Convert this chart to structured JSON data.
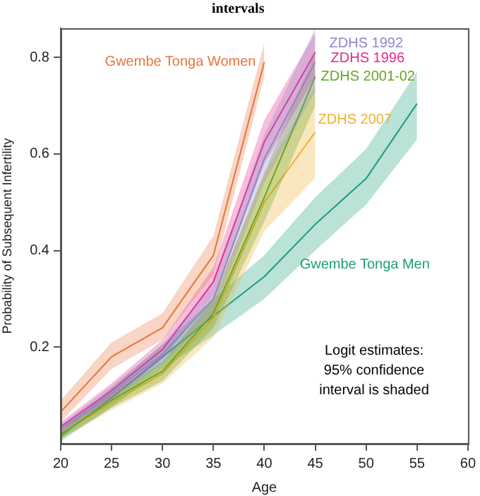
{
  "chart_data": {
    "type": "line",
    "title": "intervals",
    "xlabel": "Age",
    "ylabel": "Probability of Subsequent Infertility",
    "xlim": [
      20,
      60
    ],
    "xticks": [
      20,
      25,
      30,
      35,
      40,
      45,
      50,
      55,
      60
    ],
    "ylim": [
      0,
      0.86
    ],
    "yticks": [
      0.2,
      0.4,
      0.6,
      0.8
    ],
    "grid": false,
    "legend": false,
    "marker": "none",
    "line_style": "solid",
    "series": [
      {
        "name": "Gwembe Tonga Women",
        "color": "#e8743b",
        "x": [
          20,
          25,
          30,
          35,
          40
        ],
        "values": [
          0.066,
          0.18,
          0.24,
          0.39,
          0.79
        ],
        "lower": [
          0.045,
          0.155,
          0.215,
          0.35,
          0.76
        ],
        "upper": [
          0.09,
          0.21,
          0.27,
          0.43,
          0.83
        ]
      },
      {
        "name": "ZDHS 1992",
        "color": "#8f86c8",
        "x": [
          20,
          25,
          30,
          35,
          40,
          45
        ],
        "values": [
          0.03,
          0.105,
          0.185,
          0.3,
          0.59,
          0.79
        ],
        "lower": [
          0.02,
          0.09,
          0.165,
          0.27,
          0.54,
          0.73
        ],
        "upper": [
          0.04,
          0.12,
          0.205,
          0.33,
          0.64,
          0.86
        ]
      },
      {
        "name": "ZDHS 1996",
        "color": "#e7298a",
        "x": [
          20,
          25,
          30,
          35,
          40,
          45
        ],
        "values": [
          0.035,
          0.11,
          0.195,
          0.335,
          0.625,
          0.81
        ],
        "lower": [
          0.025,
          0.095,
          0.175,
          0.305,
          0.58,
          0.76
        ],
        "upper": [
          0.045,
          0.125,
          0.215,
          0.365,
          0.67,
          0.85
        ]
      },
      {
        "name": "ZDHS 2001-02",
        "color": "#66a61e",
        "x": [
          20,
          25,
          30,
          35,
          40,
          45
        ],
        "values": [
          0.02,
          0.09,
          0.15,
          0.27,
          0.51,
          0.76
        ],
        "lower": [
          0.01,
          0.075,
          0.13,
          0.24,
          0.46,
          0.7
        ],
        "upper": [
          0.03,
          0.105,
          0.17,
          0.3,
          0.56,
          0.81
        ]
      },
      {
        "name": "ZDHS 2007",
        "color": "#f0b030",
        "x": [
          20,
          25,
          30,
          35,
          40,
          45
        ],
        "values": [
          0.02,
          0.085,
          0.145,
          0.26,
          0.5,
          0.645
        ],
        "lower": [
          0.01,
          0.07,
          0.125,
          0.22,
          0.44,
          0.55
        ],
        "upper": [
          0.03,
          0.1,
          0.165,
          0.3,
          0.56,
          0.74
        ]
      },
      {
        "name": "Gwembe Tonga Men",
        "color": "#1b9e77",
        "x": [
          20,
          25,
          30,
          35,
          40,
          45,
          50,
          55
        ],
        "values": [
          0.015,
          0.095,
          0.18,
          0.264,
          0.346,
          0.454,
          0.549,
          0.704
        ],
        "lower": [
          0.005,
          0.075,
          0.155,
          0.225,
          0.3,
          0.4,
          0.495,
          0.63
        ],
        "upper": [
          0.025,
          0.115,
          0.205,
          0.3,
          0.39,
          0.51,
          0.61,
          0.77
        ]
      }
    ],
    "annotations": [
      "Logit estimates:\n95% confidence\ninterval is shaded"
    ]
  }
}
